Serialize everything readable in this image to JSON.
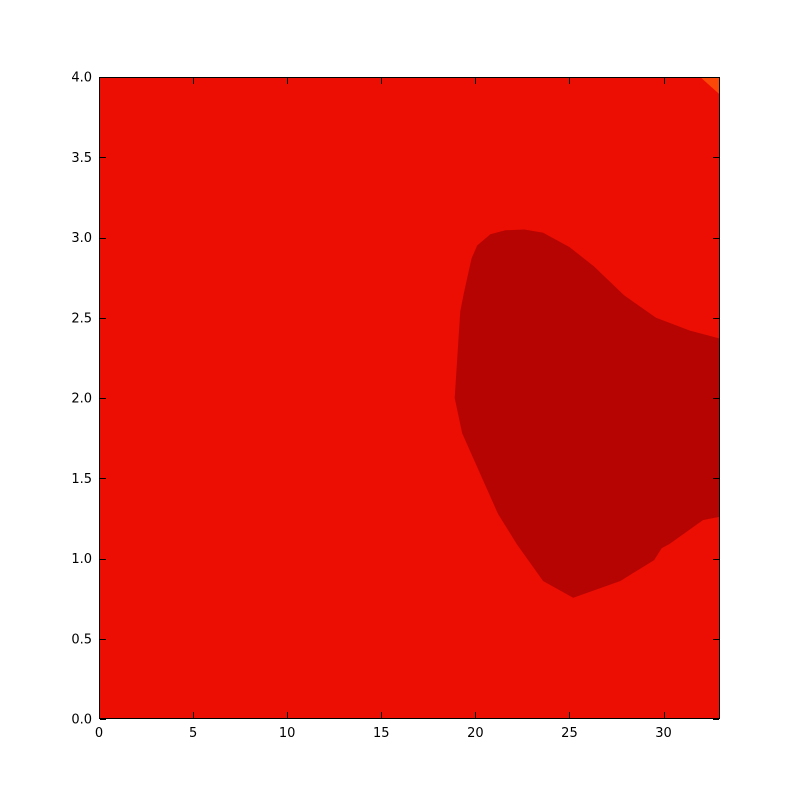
{
  "figure": {
    "background_color": "#ffffff",
    "frame_color": "#000000",
    "tick_color": "#000000",
    "tick_label_color": "#000000"
  },
  "chart_data": {
    "type": "contour",
    "subtype": "filled-contour",
    "xlim": [
      0,
      33
    ],
    "ylim": [
      0,
      4
    ],
    "xticks": [
      0,
      5,
      10,
      15,
      20,
      25,
      30
    ],
    "xtick_labels": [
      "0",
      "5",
      "10",
      "15",
      "20",
      "25",
      "30"
    ],
    "yticks": [
      0,
      0.5,
      1,
      1.5,
      2,
      2.5,
      3,
      3.5,
      4
    ],
    "ytick_labels": [
      "0.0",
      "0.5",
      "1.0",
      "1.5",
      "2.0",
      "2.5",
      "3.0",
      "3.5",
      "4.0"
    ],
    "grid": false,
    "legend": false,
    "levels": [
      {
        "name": "level-low-orange",
        "color": "#FB4708"
      },
      {
        "name": "level-mid-red",
        "color": "#EC0D03"
      },
      {
        "name": "level-high-darkred",
        "color": "#B50402"
      }
    ],
    "regions": [
      {
        "level": "level-mid-red",
        "description": "background fill covering full axes extent",
        "polygon": [
          [
            0,
            0
          ],
          [
            33,
            0
          ],
          [
            33,
            4
          ],
          [
            0,
            4
          ]
        ]
      },
      {
        "level": "level-low-orange",
        "description": "small triangle at top-right corner",
        "polygon": [
          [
            31.95,
            4.0
          ],
          [
            33,
            4.0
          ],
          [
            33,
            3.89
          ]
        ]
      },
      {
        "level": "level-high-darkred",
        "description": "large high-value blob on right side, touching right edge between y=1.26 and y=2.37",
        "polygon": [
          [
            20.8,
            3.02
          ],
          [
            21.6,
            3.045
          ],
          [
            22.6,
            3.05
          ],
          [
            23.6,
            3.03
          ],
          [
            25.0,
            2.94
          ],
          [
            26.3,
            2.82
          ],
          [
            27.9,
            2.64
          ],
          [
            29.6,
            2.5
          ],
          [
            31.4,
            2.42
          ],
          [
            33,
            2.37
          ],
          [
            33,
            1.26
          ],
          [
            32.1,
            1.24
          ],
          [
            30.3,
            1.09
          ],
          [
            29.9,
            1.065
          ],
          [
            29.5,
            0.99
          ],
          [
            27.7,
            0.86
          ],
          [
            25.2,
            0.755
          ],
          [
            23.6,
            0.86
          ],
          [
            22.2,
            1.09
          ],
          [
            21.2,
            1.28
          ],
          [
            20.1,
            1.57
          ],
          [
            19.3,
            1.78
          ],
          [
            18.9,
            2.0
          ],
          [
            19.2,
            2.54
          ],
          [
            19.4,
            2.66
          ],
          [
            19.8,
            2.87
          ],
          [
            20.1,
            2.95
          ]
        ]
      }
    ]
  }
}
